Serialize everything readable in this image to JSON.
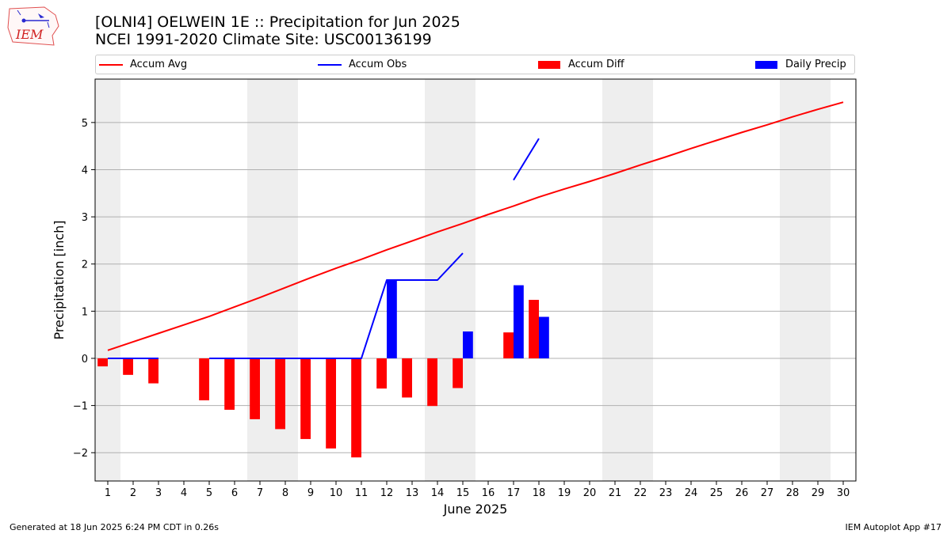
{
  "logo": {
    "text": "IEM"
  },
  "header": {
    "title": "[OLNI4] OELWEIN 1E :: Precipitation for Jun 2025",
    "subtitle": "NCEI 1991-2020 Climate Site: USC00136199"
  },
  "legend": {
    "items": [
      {
        "label": "Accum Avg",
        "kind": "line",
        "color": "#ff0000"
      },
      {
        "label": "Accum Obs",
        "kind": "line",
        "color": "#0000ff"
      },
      {
        "label": "Accum Diff",
        "kind": "patch",
        "color": "#ff0000"
      },
      {
        "label": "Daily Precip",
        "kind": "patch",
        "color": "#0000ff"
      }
    ]
  },
  "footer": {
    "left": "Generated at 18 Jun 2025 6:24 PM CDT in 0.26s",
    "right": "IEM Autoplot App #17"
  },
  "chart_data": {
    "type": "bar",
    "xlabel": "June 2025",
    "ylabel": "Precipitation [inch]",
    "xlim": [
      0.5,
      30.5
    ],
    "ylim": [
      -2.6,
      5.92
    ],
    "x_ticks": [
      1,
      2,
      3,
      4,
      5,
      6,
      7,
      8,
      9,
      10,
      11,
      12,
      13,
      14,
      15,
      16,
      17,
      18,
      19,
      20,
      21,
      22,
      23,
      24,
      25,
      26,
      27,
      28,
      29,
      30
    ],
    "y_ticks": [
      -2,
      -1,
      0,
      1,
      2,
      3,
      4,
      5
    ],
    "y_tick_labels": [
      "−2",
      "−1",
      "0",
      "1",
      "2",
      "3",
      "4",
      "5"
    ],
    "grid": "horizontal",
    "weekend_shading": [
      [
        0.5,
        1.5
      ],
      [
        6.5,
        8.5
      ],
      [
        13.5,
        15.5
      ],
      [
        20.5,
        22.5
      ],
      [
        27.5,
        29.5
      ]
    ],
    "shade_color": "#eeeeee",
    "series": [
      {
        "name": "Accum Avg",
        "kind": "line",
        "color": "#ff0000",
        "x": [
          1,
          2,
          3,
          4,
          5,
          6,
          7,
          8,
          9,
          10,
          11,
          12,
          13,
          14,
          15,
          16,
          17,
          18,
          19,
          20,
          21,
          22,
          23,
          24,
          25,
          26,
          27,
          28,
          29,
          30
        ],
        "y": [
          0.17,
          0.35,
          0.53,
          0.71,
          0.89,
          1.09,
          1.29,
          1.5,
          1.71,
          1.91,
          2.1,
          2.3,
          2.49,
          2.68,
          2.86,
          3.05,
          3.23,
          3.42,
          3.59,
          3.75,
          3.92,
          4.1,
          4.27,
          4.45,
          4.62,
          4.79,
          4.95,
          5.12,
          5.28,
          5.43
        ]
      },
      {
        "name": "Accum Obs",
        "kind": "line",
        "color": "#0000ff",
        "x": [
          1,
          2,
          3,
          4,
          5,
          6,
          7,
          8,
          9,
          10,
          11,
          12,
          13,
          14,
          15,
          16,
          17,
          18,
          19,
          20,
          21,
          22,
          23,
          24,
          25,
          26,
          27,
          28,
          29,
          30
        ],
        "y": [
          0,
          0,
          0,
          null,
          0,
          0,
          0,
          0,
          0,
          0,
          0,
          1.66,
          1.66,
          1.66,
          2.23,
          null,
          3.78,
          4.66,
          null,
          null,
          null,
          null,
          null,
          null,
          null,
          null,
          null,
          null,
          null,
          null
        ]
      },
      {
        "name": "Accum Diff",
        "kind": "bar",
        "color": "#ff0000",
        "offset": -0.2,
        "width": 0.4,
        "x": [
          1,
          2,
          3,
          5,
          6,
          7,
          8,
          9,
          10,
          11,
          12,
          13,
          14,
          15,
          17,
          18
        ],
        "y": [
          -0.17,
          -0.35,
          -0.53,
          -0.89,
          -1.09,
          -1.29,
          -1.5,
          -1.71,
          -1.91,
          -2.1,
          -0.64,
          -0.83,
          -1.01,
          -0.63,
          0.55,
          1.24
        ]
      },
      {
        "name": "Daily Precip",
        "kind": "bar",
        "color": "#0000ff",
        "offset": 0.2,
        "width": 0.4,
        "x": [
          12,
          15,
          17,
          18
        ],
        "y": [
          1.66,
          0.57,
          1.55,
          0.88
        ]
      }
    ]
  }
}
